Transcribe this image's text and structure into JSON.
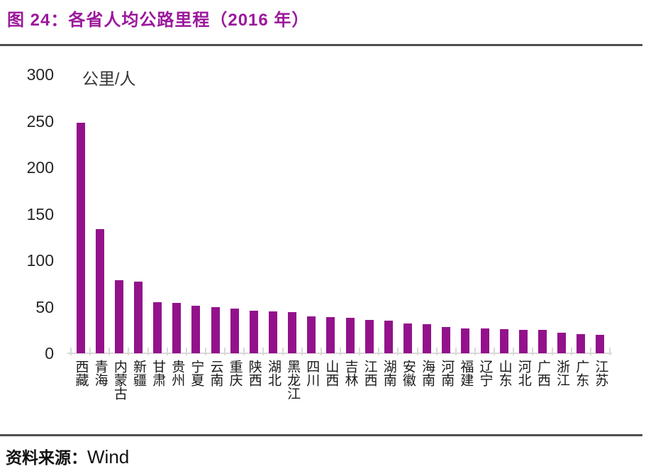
{
  "header": {
    "title": "图 24：各省人均公路里程（2016 年）"
  },
  "chart_data": {
    "type": "bar",
    "title": "各省人均公路里程（2016 年）",
    "unit_label": "公里/人",
    "categories": [
      "西藏",
      "青海",
      "内蒙古",
      "新疆",
      "甘肃",
      "贵州",
      "宁夏",
      "云南",
      "重庆",
      "陕西",
      "湖北",
      "黑龙江",
      "四川",
      "山西",
      "吉林",
      "江西",
      "湖南",
      "安徽",
      "海南",
      "河南",
      "福建",
      "辽宁",
      "山东",
      "河北",
      "广西",
      "浙江",
      "广东",
      "江苏"
    ],
    "values": [
      248,
      134,
      79,
      77,
      55,
      54,
      51,
      50,
      48,
      46,
      45,
      44,
      40,
      39,
      38,
      36,
      35,
      32,
      31,
      28,
      27,
      27,
      26,
      25,
      25,
      22,
      21,
      20
    ],
    "ylim": [
      0,
      300
    ],
    "yticks": [
      300,
      250,
      200,
      150,
      100,
      50,
      0
    ],
    "grid": false,
    "legend_position": "none",
    "bar_color": "#93128B"
  },
  "footer": {
    "source_label": "资料来源：",
    "source_value": "Wind"
  },
  "colors": {
    "title": "#9B189B",
    "bar": "#93128B",
    "axis": "#D9D9D9",
    "rule": "#4F4F4F"
  }
}
